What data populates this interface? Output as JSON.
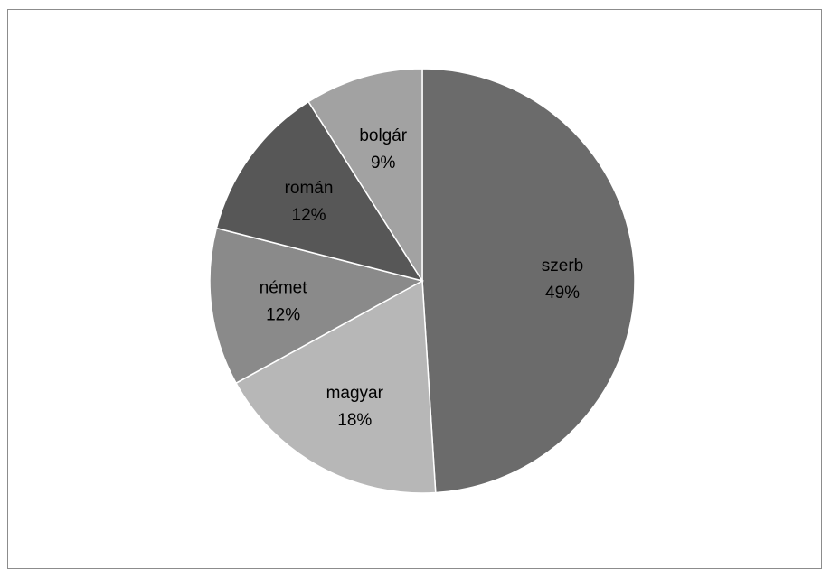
{
  "chart_data": {
    "type": "pie",
    "title": "",
    "slices": [
      {
        "label": "szerb",
        "value": 49,
        "value_label": "49%",
        "color": "#6b6b6b"
      },
      {
        "label": "magyar",
        "value": 18,
        "value_label": "18%",
        "color": "#b7b7b7"
      },
      {
        "label": "német",
        "value": 12,
        "value_label": "12%",
        "color": "#8a8a8a"
      },
      {
        "label": "román",
        "value": 12,
        "value_label": "12%",
        "color": "#575757"
      },
      {
        "label": "bolgár",
        "value": 9,
        "value_label": "9%",
        "color": "#a2a2a2"
      }
    ],
    "start": "12 o'clock",
    "direction": "clockwise",
    "legend": "none",
    "labels": "inside"
  }
}
